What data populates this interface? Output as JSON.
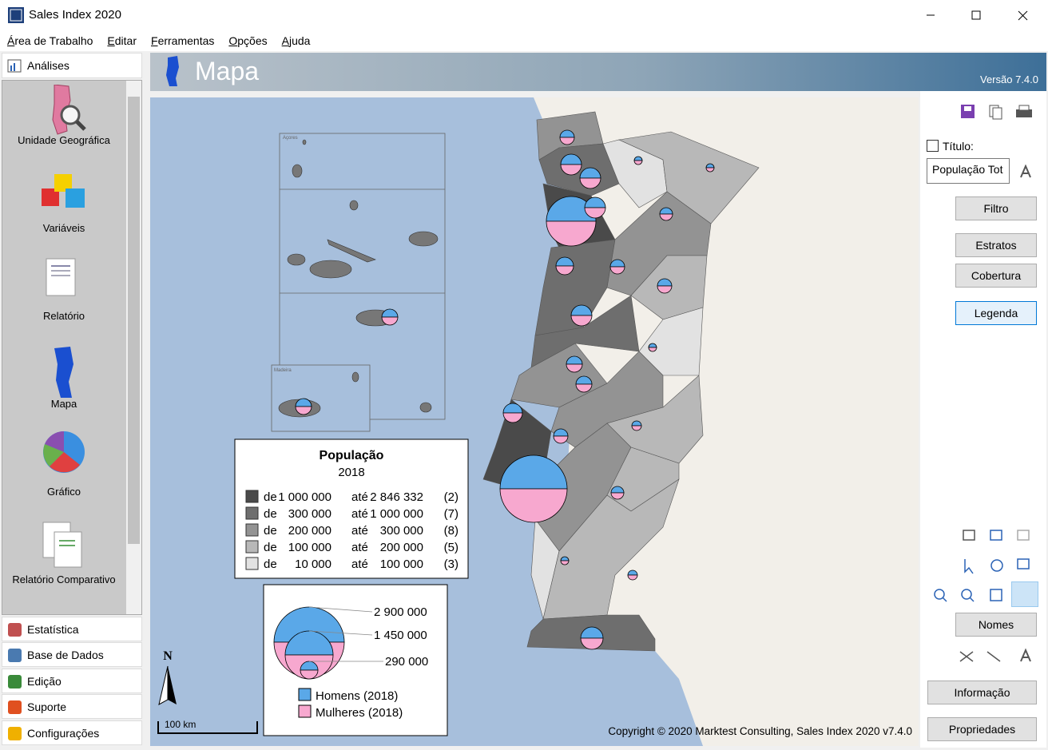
{
  "window": {
    "title": "Sales Index 2020"
  },
  "menu": [
    "Área de Trabalho",
    "Editar",
    "Ferramentas",
    "Opções",
    "Ajuda"
  ],
  "sidebar": {
    "header": "Análises",
    "items": [
      "Unidade Geográfica",
      "Variáveis",
      "Relatório",
      "Mapa",
      "Gráfico",
      "Relatório Comparativo"
    ],
    "sections": [
      "Estatística",
      "Base de Dados",
      "Edição",
      "Suporte",
      "Configurações"
    ]
  },
  "header": {
    "title": "Mapa",
    "version": "Versão 7.4.0"
  },
  "map": {
    "insets": [
      "Açores",
      "Madeira"
    ],
    "north": "N",
    "scale": "100 km",
    "copyright": "Copyright © 2020 Marktest Consulting, Sales Index 2020 v7.4.0"
  },
  "legend": {
    "title": "População",
    "subtitle": "2018",
    "rows": [
      [
        "de",
        "1 000 000",
        "até",
        "2 846 332",
        "(2)"
      ],
      [
        "de",
        "300 000",
        "até",
        "1 000 000",
        "(7)"
      ],
      [
        "de",
        "200 000",
        "até",
        "300 000",
        "(8)"
      ],
      [
        "de",
        "100 000",
        "até",
        "200 000",
        "(5)"
      ],
      [
        "de",
        "10 000",
        "até",
        "100 000",
        "(3)"
      ]
    ]
  },
  "size_legend": {
    "labels": [
      "2 900 000",
      "1 450 000",
      "290 000"
    ],
    "series": [
      "Homens (2018)",
      "Mulheres (2018)"
    ]
  },
  "panel": {
    "title_label": "Título:",
    "title_input": "População Tot",
    "buttons": [
      "Filtro",
      "Estratos",
      "Cobertura",
      "Legenda",
      "Nomes",
      "Informação",
      "Propriedades"
    ]
  }
}
